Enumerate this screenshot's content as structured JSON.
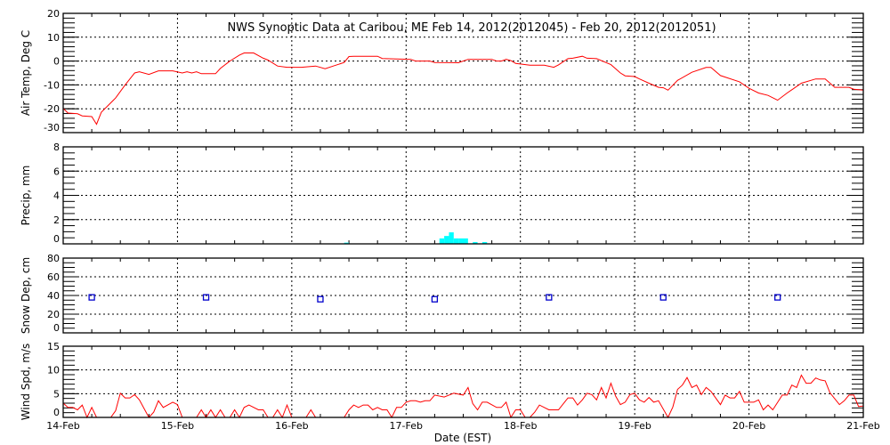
{
  "title": "NWS Synoptic Data at Caribou, ME    Feb 14, 2012(2012045) - Feb 20, 2012(2012051)",
  "xlabel": "Date (EST)",
  "x_range": [
    "02-14 00:00",
    "02-21 00:00"
  ],
  "x_tick_labels": [
    "14-Feb",
    "15-Feb",
    "16-Feb",
    "17-Feb",
    "18-Feb",
    "19-Feb",
    "20-Feb",
    "21-Feb"
  ],
  "grid": true,
  "chart_data": [
    {
      "type": "line",
      "ylabel": "Air Temp, Deg C",
      "ylim": [
        -30,
        20
      ],
      "y_ticks": [
        "-30",
        "-20",
        "-10",
        "0",
        "10",
        "20"
      ],
      "color": "#ff0000",
      "points": [
        [
          "02-14 00:00",
          -19.9
        ],
        [
          "02-14 01:00",
          -21.8
        ],
        [
          "02-14 03:00",
          -22.1
        ],
        [
          "02-14 04:00",
          -23
        ],
        [
          "02-14 06:00",
          -23.3
        ],
        [
          "02-14 07:00",
          -26.5
        ],
        [
          "02-14 08:00",
          -21.5
        ],
        [
          "02-14 11:00",
          -15.5
        ],
        [
          "02-14 13:00",
          -10
        ],
        [
          "02-14 15:00",
          -5
        ],
        [
          "02-14 16:00",
          -4.5
        ],
        [
          "02-14 18:00",
          -5.6
        ],
        [
          "02-14 20:00",
          -4.1
        ],
        [
          "02-14 23:00",
          -4.1
        ],
        [
          "02-15 01:00",
          -5
        ],
        [
          "02-15 02:00",
          -4.5
        ],
        [
          "02-15 03:00",
          -5
        ],
        [
          "02-15 04:00",
          -4.5
        ],
        [
          "02-15 05:00",
          -5.3
        ],
        [
          "02-15 08:00",
          -5.3
        ],
        [
          "02-15 09:00",
          -3.1
        ],
        [
          "02-15 11:00",
          0
        ],
        [
          "02-15 13:00",
          2.5
        ],
        [
          "02-15 14:00",
          3.4
        ],
        [
          "02-15 16:00",
          3.4
        ],
        [
          "02-15 18:00",
          1.2
        ],
        [
          "02-15 19:00",
          0.4
        ],
        [
          "02-15 21:00",
          -2.1
        ],
        [
          "02-15 23:00",
          -2.6
        ],
        [
          "02-16 02:00",
          -2.6
        ],
        [
          "02-16 05:00",
          -2.1
        ],
        [
          "02-16 07:00",
          -3.2
        ],
        [
          "02-16 09:00",
          -1.9
        ],
        [
          "02-16 11:00",
          -0.6
        ],
        [
          "02-16 12:00",
          1.9
        ],
        [
          "02-16 13:00",
          2
        ],
        [
          "02-16 18:00",
          2
        ],
        [
          "02-16 19:00",
          1.1
        ],
        [
          "02-17 01:00",
          0.7
        ],
        [
          "02-17 02:00",
          0
        ],
        [
          "02-17 05:00",
          0
        ],
        [
          "02-17 06:00",
          -0.6
        ],
        [
          "02-17 11:00",
          -0.7
        ],
        [
          "02-17 13:00",
          0.7
        ],
        [
          "02-17 18:00",
          0.7
        ],
        [
          "02-17 19:00",
          0
        ],
        [
          "02-17 20:00",
          0
        ],
        [
          "02-17 21:00",
          0.7
        ],
        [
          "02-17 22:00",
          0.2
        ],
        [
          "02-17 23:00",
          -1
        ],
        [
          "02-18 02:00",
          -1.7
        ],
        [
          "02-18 05:00",
          -1.7
        ],
        [
          "02-18 07:00",
          -2.6
        ],
        [
          "02-18 08:00",
          -1.6
        ],
        [
          "02-18 10:00",
          1
        ],
        [
          "02-18 11:00",
          1.2
        ],
        [
          "02-18 13:00",
          2
        ],
        [
          "02-18 14:00",
          1.2
        ],
        [
          "02-18 16:00",
          1
        ],
        [
          "02-18 19:00",
          -1.5
        ],
        [
          "02-18 21:00",
          -5
        ],
        [
          "02-18 22:00",
          -6.2
        ],
        [
          "02-19 00:00",
          -6.5
        ],
        [
          "02-19 01:00",
          -7.5
        ],
        [
          "02-19 03:00",
          -9.3
        ],
        [
          "02-19 05:00",
          -11
        ],
        [
          "02-19 06:00",
          -11.2
        ],
        [
          "02-19 07:00",
          -12.2
        ],
        [
          "02-19 09:00",
          -8.1
        ],
        [
          "02-19 12:00",
          -4.7
        ],
        [
          "02-19 15:00",
          -2.7
        ],
        [
          "02-19 16:00",
          -2.7
        ],
        [
          "02-19 18:00",
          -6.1
        ],
        [
          "02-19 22:00",
          -8.7
        ],
        [
          "02-20 00:00",
          -11.4
        ],
        [
          "02-20 02:00",
          -13.4
        ],
        [
          "02-20 04:00",
          -14.4
        ],
        [
          "02-20 06:00",
          -16.4
        ],
        [
          "02-20 08:00",
          -13.4
        ],
        [
          "02-20 11:00",
          -9.3
        ],
        [
          "02-20 14:00",
          -7.5
        ],
        [
          "02-20 16:00",
          -7.5
        ],
        [
          "02-20 18:00",
          -11
        ],
        [
          "02-20 21:00",
          -11
        ],
        [
          "02-20 22:00",
          -11.8
        ],
        [
          "02-21 00:00",
          -12.2
        ]
      ]
    },
    {
      "type": "bar",
      "ylabel": "Precip, mm",
      "ylim": [
        0,
        8
      ],
      "y_ticks": [
        "0",
        "2",
        "4",
        "6",
        "8"
      ],
      "color": "#00ffff",
      "bar_hours": 1,
      "points": [
        [
          "02-16 11:00",
          0.1
        ],
        [
          "02-17 07:00",
          0.45
        ],
        [
          "02-17 08:00",
          0.65
        ],
        [
          "02-17 09:00",
          0.95
        ],
        [
          "02-17 10:00",
          0.45
        ],
        [
          "02-17 11:00",
          0.45
        ],
        [
          "02-17 12:00",
          0.45
        ],
        [
          "02-17 14:00",
          0.15
        ],
        [
          "02-17 16:00",
          0.15
        ]
      ]
    },
    {
      "type": "scatter",
      "ylabel": "Snow Dep, cm",
      "ylim": [
        0,
        80
      ],
      "y_ticks": [
        "0",
        "20",
        "40",
        "60",
        "80"
      ],
      "color": "#0000cc",
      "marker": "open-square",
      "points": [
        [
          "02-14 06:00",
          38
        ],
        [
          "02-15 06:00",
          38
        ],
        [
          "02-16 06:00",
          36
        ],
        [
          "02-17 06:00",
          36
        ],
        [
          "02-18 06:00",
          38
        ],
        [
          "02-19 06:00",
          38
        ],
        [
          "02-20 06:00",
          38
        ]
      ]
    },
    {
      "type": "line",
      "ylabel": "Wind Spd, m/s",
      "ylim": [
        0,
        15
      ],
      "y_ticks": [
        "0",
        "5",
        "10",
        "15"
      ],
      "color": "#ff0000",
      "points": [
        [
          "02-14 00:00",
          3.0
        ],
        [
          "02-14 01:00",
          2.1
        ],
        [
          "02-14 02:00",
          2.1
        ],
        [
          "02-14 03:00",
          1.6
        ],
        [
          "02-14 04:00",
          2.6
        ],
        [
          "02-14 05:00",
          0
        ],
        [
          "02-14 06:00",
          2.1
        ],
        [
          "02-14 07:00",
          0
        ],
        [
          "02-14 10:00",
          0
        ],
        [
          "02-14 11:00",
          1.4
        ],
        [
          "02-14 12:00",
          5.1
        ],
        [
          "02-14 13:00",
          4.1
        ],
        [
          "02-14 14:00",
          4.1
        ],
        [
          "02-14 15:00",
          4.8
        ],
        [
          "02-14 16:00",
          3.7
        ],
        [
          "02-14 18:00",
          0
        ],
        [
          "02-14 19:00",
          1.1
        ],
        [
          "02-14 20:00",
          3.5
        ],
        [
          "02-14 21:00",
          2.1
        ],
        [
          "02-14 23:00",
          3.2
        ],
        [
          "02-15 00:00",
          2.7
        ],
        [
          "02-15 01:00",
          0
        ],
        [
          "02-15 04:00",
          0
        ],
        [
          "02-15 05:00",
          1.6
        ],
        [
          "02-15 06:00",
          0
        ],
        [
          "02-15 07:00",
          1.6
        ],
        [
          "02-15 08:00",
          0
        ],
        [
          "02-15 09:00",
          1.6
        ],
        [
          "02-15 10:00",
          0
        ],
        [
          "02-15 11:00",
          0
        ],
        [
          "02-15 12:00",
          1.6
        ],
        [
          "02-15 13:00",
          0
        ],
        [
          "02-15 14:00",
          2.1
        ],
        [
          "02-15 15:00",
          2.6
        ],
        [
          "02-15 17:00",
          1.6
        ],
        [
          "02-15 18:00",
          1.6
        ],
        [
          "02-15 19:00",
          0
        ],
        [
          "02-15 20:00",
          0
        ],
        [
          "02-15 21:00",
          1.6
        ],
        [
          "02-15 22:00",
          0
        ],
        [
          "02-15 23:00",
          2.6
        ],
        [
          "02-16 00:00",
          0
        ],
        [
          "02-16 03:00",
          0
        ],
        [
          "02-16 04:00",
          1.6
        ],
        [
          "02-16 05:00",
          0
        ],
        [
          "02-16 11:00",
          0
        ],
        [
          "02-16 12:00",
          1.6
        ],
        [
          "02-16 13:00",
          2.6
        ],
        [
          "02-16 14:00",
          2.1
        ],
        [
          "02-16 15:00",
          2.6
        ],
        [
          "02-16 16:00",
          2.6
        ],
        [
          "02-16 17:00",
          1.6
        ],
        [
          "02-16 18:00",
          2.1
        ],
        [
          "02-16 19:00",
          1.6
        ],
        [
          "02-16 20:00",
          1.6
        ],
        [
          "02-16 21:00",
          0
        ],
        [
          "02-16 22:00",
          2.1
        ],
        [
          "02-16 23:00",
          2.1
        ],
        [
          "02-17 00:00",
          3.2
        ],
        [
          "02-17 01:00",
          3.5
        ],
        [
          "02-17 02:00",
          3.5
        ],
        [
          "02-17 03:00",
          3.2
        ],
        [
          "02-17 04:00",
          3.5
        ],
        [
          "02-17 05:00",
          3.5
        ],
        [
          "02-17 06:00",
          4.7
        ],
        [
          "02-17 08:00",
          4.3
        ],
        [
          "02-17 10:00",
          5.1
        ],
        [
          "02-17 12:00",
          4.7
        ],
        [
          "02-17 13:00",
          6.3
        ],
        [
          "02-17 14:00",
          2.9
        ],
        [
          "02-17 15:00",
          1.6
        ],
        [
          "02-17 16:00",
          3.2
        ],
        [
          "02-17 17:00",
          3.2
        ],
        [
          "02-17 19:00",
          2.1
        ],
        [
          "02-17 20:00",
          2.1
        ],
        [
          "02-17 21:00",
          3.2
        ],
        [
          "02-17 22:00",
          0
        ],
        [
          "02-17 23:00",
          1.6
        ],
        [
          "02-18 00:00",
          1.6
        ],
        [
          "02-18 01:00",
          0
        ],
        [
          "02-18 02:00",
          0
        ],
        [
          "02-18 03:00",
          1.1
        ],
        [
          "02-18 04:00",
          2.6
        ],
        [
          "02-18 06:00",
          1.6
        ],
        [
          "02-18 08:00",
          1.6
        ],
        [
          "02-18 10:00",
          4.1
        ],
        [
          "02-18 11:00",
          4.1
        ],
        [
          "02-18 12:00",
          2.6
        ],
        [
          "02-18 13:00",
          3.7
        ],
        [
          "02-18 14:00",
          5.1
        ],
        [
          "02-18 15:00",
          4.8
        ],
        [
          "02-18 16:00",
          3.7
        ],
        [
          "02-18 17:00",
          6.3
        ],
        [
          "02-18 18:00",
          4.1
        ],
        [
          "02-18 19:00",
          7.2
        ],
        [
          "02-18 20:00",
          4.5
        ],
        [
          "02-18 21:00",
          2.7
        ],
        [
          "02-18 22:00",
          3.2
        ],
        [
          "02-18 23:00",
          4.8
        ],
        [
          "02-19 00:00",
          5.1
        ],
        [
          "02-19 01:00",
          3.7
        ],
        [
          "02-19 02:00",
          3.2
        ],
        [
          "02-19 03:00",
          4.2
        ],
        [
          "02-19 04:00",
          3.2
        ],
        [
          "02-19 05:00",
          3.5
        ],
        [
          "02-19 07:00",
          0
        ],
        [
          "02-19 08:00",
          2.2
        ],
        [
          "02-19 09:00",
          5.9
        ],
        [
          "02-19 10:00",
          6.8
        ],
        [
          "02-19 11:00",
          8.4
        ],
        [
          "02-19 12:00",
          6.3
        ],
        [
          "02-19 13:00",
          6.8
        ],
        [
          "02-19 14:00",
          4.8
        ],
        [
          "02-19 15:00",
          6.3
        ],
        [
          "02-19 16:00",
          5.5
        ],
        [
          "02-19 18:00",
          2.7
        ],
        [
          "02-19 19:00",
          4.7
        ],
        [
          "02-19 20:00",
          4.1
        ],
        [
          "02-19 21:00",
          4.1
        ],
        [
          "02-19 22:00",
          5.5
        ],
        [
          "02-19 23:00",
          3.2
        ],
        [
          "02-20 01:00",
          3.2
        ],
        [
          "02-20 02:00",
          3.7
        ],
        [
          "02-20 03:00",
          1.6
        ],
        [
          "02-20 04:00",
          2.6
        ],
        [
          "02-20 05:00",
          1.6
        ],
        [
          "02-20 07:00",
          4.7
        ],
        [
          "02-20 08:00",
          4.7
        ],
        [
          "02-20 09:00",
          6.8
        ],
        [
          "02-20 10:00",
          6.3
        ],
        [
          "02-20 11:00",
          8.9
        ],
        [
          "02-20 12:00",
          7.2
        ],
        [
          "02-20 13:00",
          7.2
        ],
        [
          "02-20 14:00",
          8.3
        ],
        [
          "02-20 15:00",
          7.9
        ],
        [
          "02-20 16:00",
          7.7
        ],
        [
          "02-20 17:00",
          5.2
        ],
        [
          "02-20 19:00",
          2.7
        ],
        [
          "02-20 20:00",
          3.5
        ],
        [
          "02-20 21:00",
          4.7
        ],
        [
          "02-20 22:00",
          4.7
        ],
        [
          "02-20 23:00",
          2.3
        ],
        [
          "02-21 00:00",
          2.4
        ]
      ]
    }
  ]
}
